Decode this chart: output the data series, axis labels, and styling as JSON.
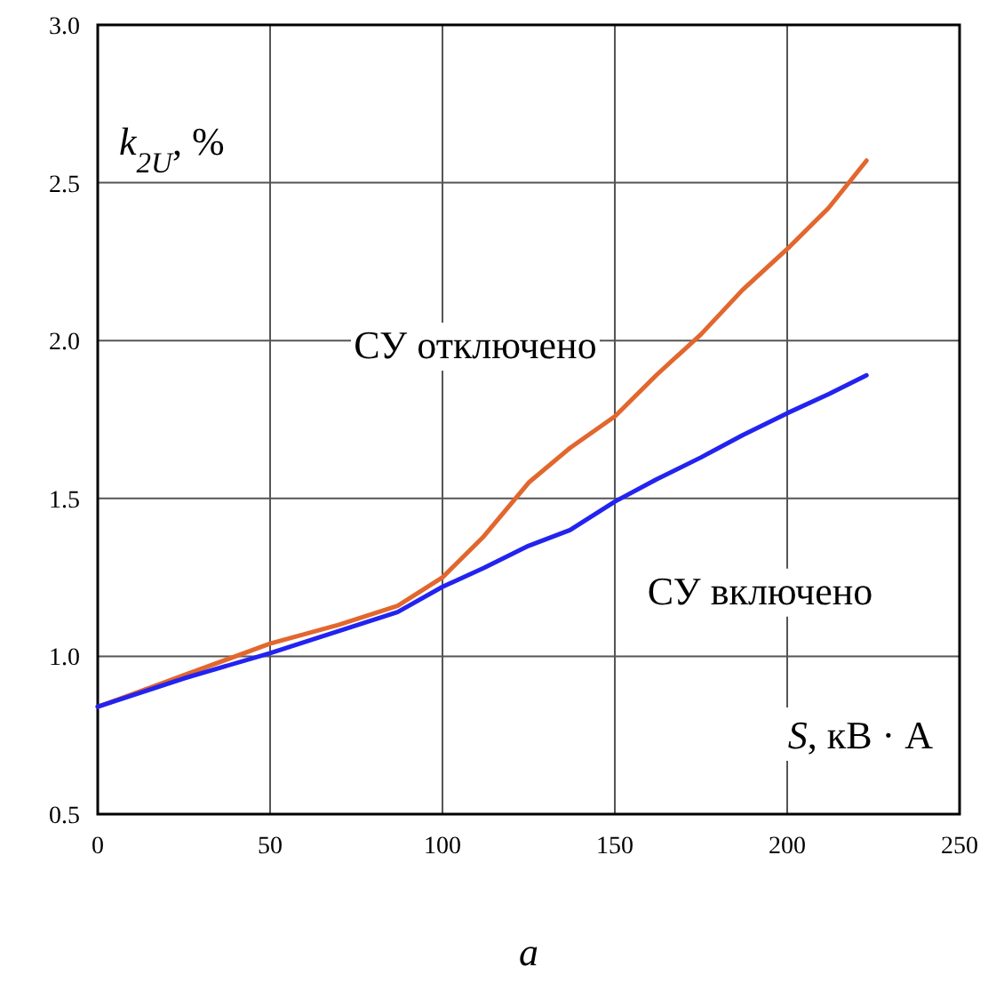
{
  "chart_data": {
    "type": "line",
    "xlabel": "S, кВ · А",
    "ylabel": "k$_{2U}$, %",
    "x": [
      0,
      25,
      50,
      70,
      87,
      100,
      112,
      125,
      137,
      150,
      162,
      175,
      187,
      200,
      212,
      223
    ],
    "series": [
      {
        "name": "СУ отключено",
        "color": "#e2672e",
        "values": [
          0.84,
          0.94,
          1.04,
          1.1,
          1.16,
          1.25,
          1.38,
          1.55,
          1.66,
          1.76,
          1.89,
          2.02,
          2.16,
          2.29,
          2.42,
          2.57
        ]
      },
      {
        "name": "СУ включено",
        "color": "#2323f0",
        "values": [
          0.84,
          0.93,
          1.01,
          1.08,
          1.14,
          1.22,
          1.28,
          1.35,
          1.4,
          1.49,
          1.56,
          1.63,
          1.7,
          1.77,
          1.83,
          1.89
        ]
      }
    ],
    "xlim": [
      0,
      250
    ],
    "ylim": [
      0.5,
      3.0
    ],
    "xticks": [
      0,
      50,
      100,
      150,
      200,
      250
    ],
    "yticks": [
      {
        "value": 0.5,
        "label": "0.5"
      },
      {
        "value": 1.0,
        "label": "1.0"
      },
      {
        "value": 1.5,
        "label": "1.5"
      },
      {
        "value": 2.0,
        "label": "2.0"
      },
      {
        "value": 2.5,
        "label": "2.5"
      },
      {
        "value": 3.0,
        "label": "3.0"
      }
    ],
    "grid": true,
    "line_style": "solid",
    "marker": "none",
    "annotations": [
      "a"
    ]
  }
}
